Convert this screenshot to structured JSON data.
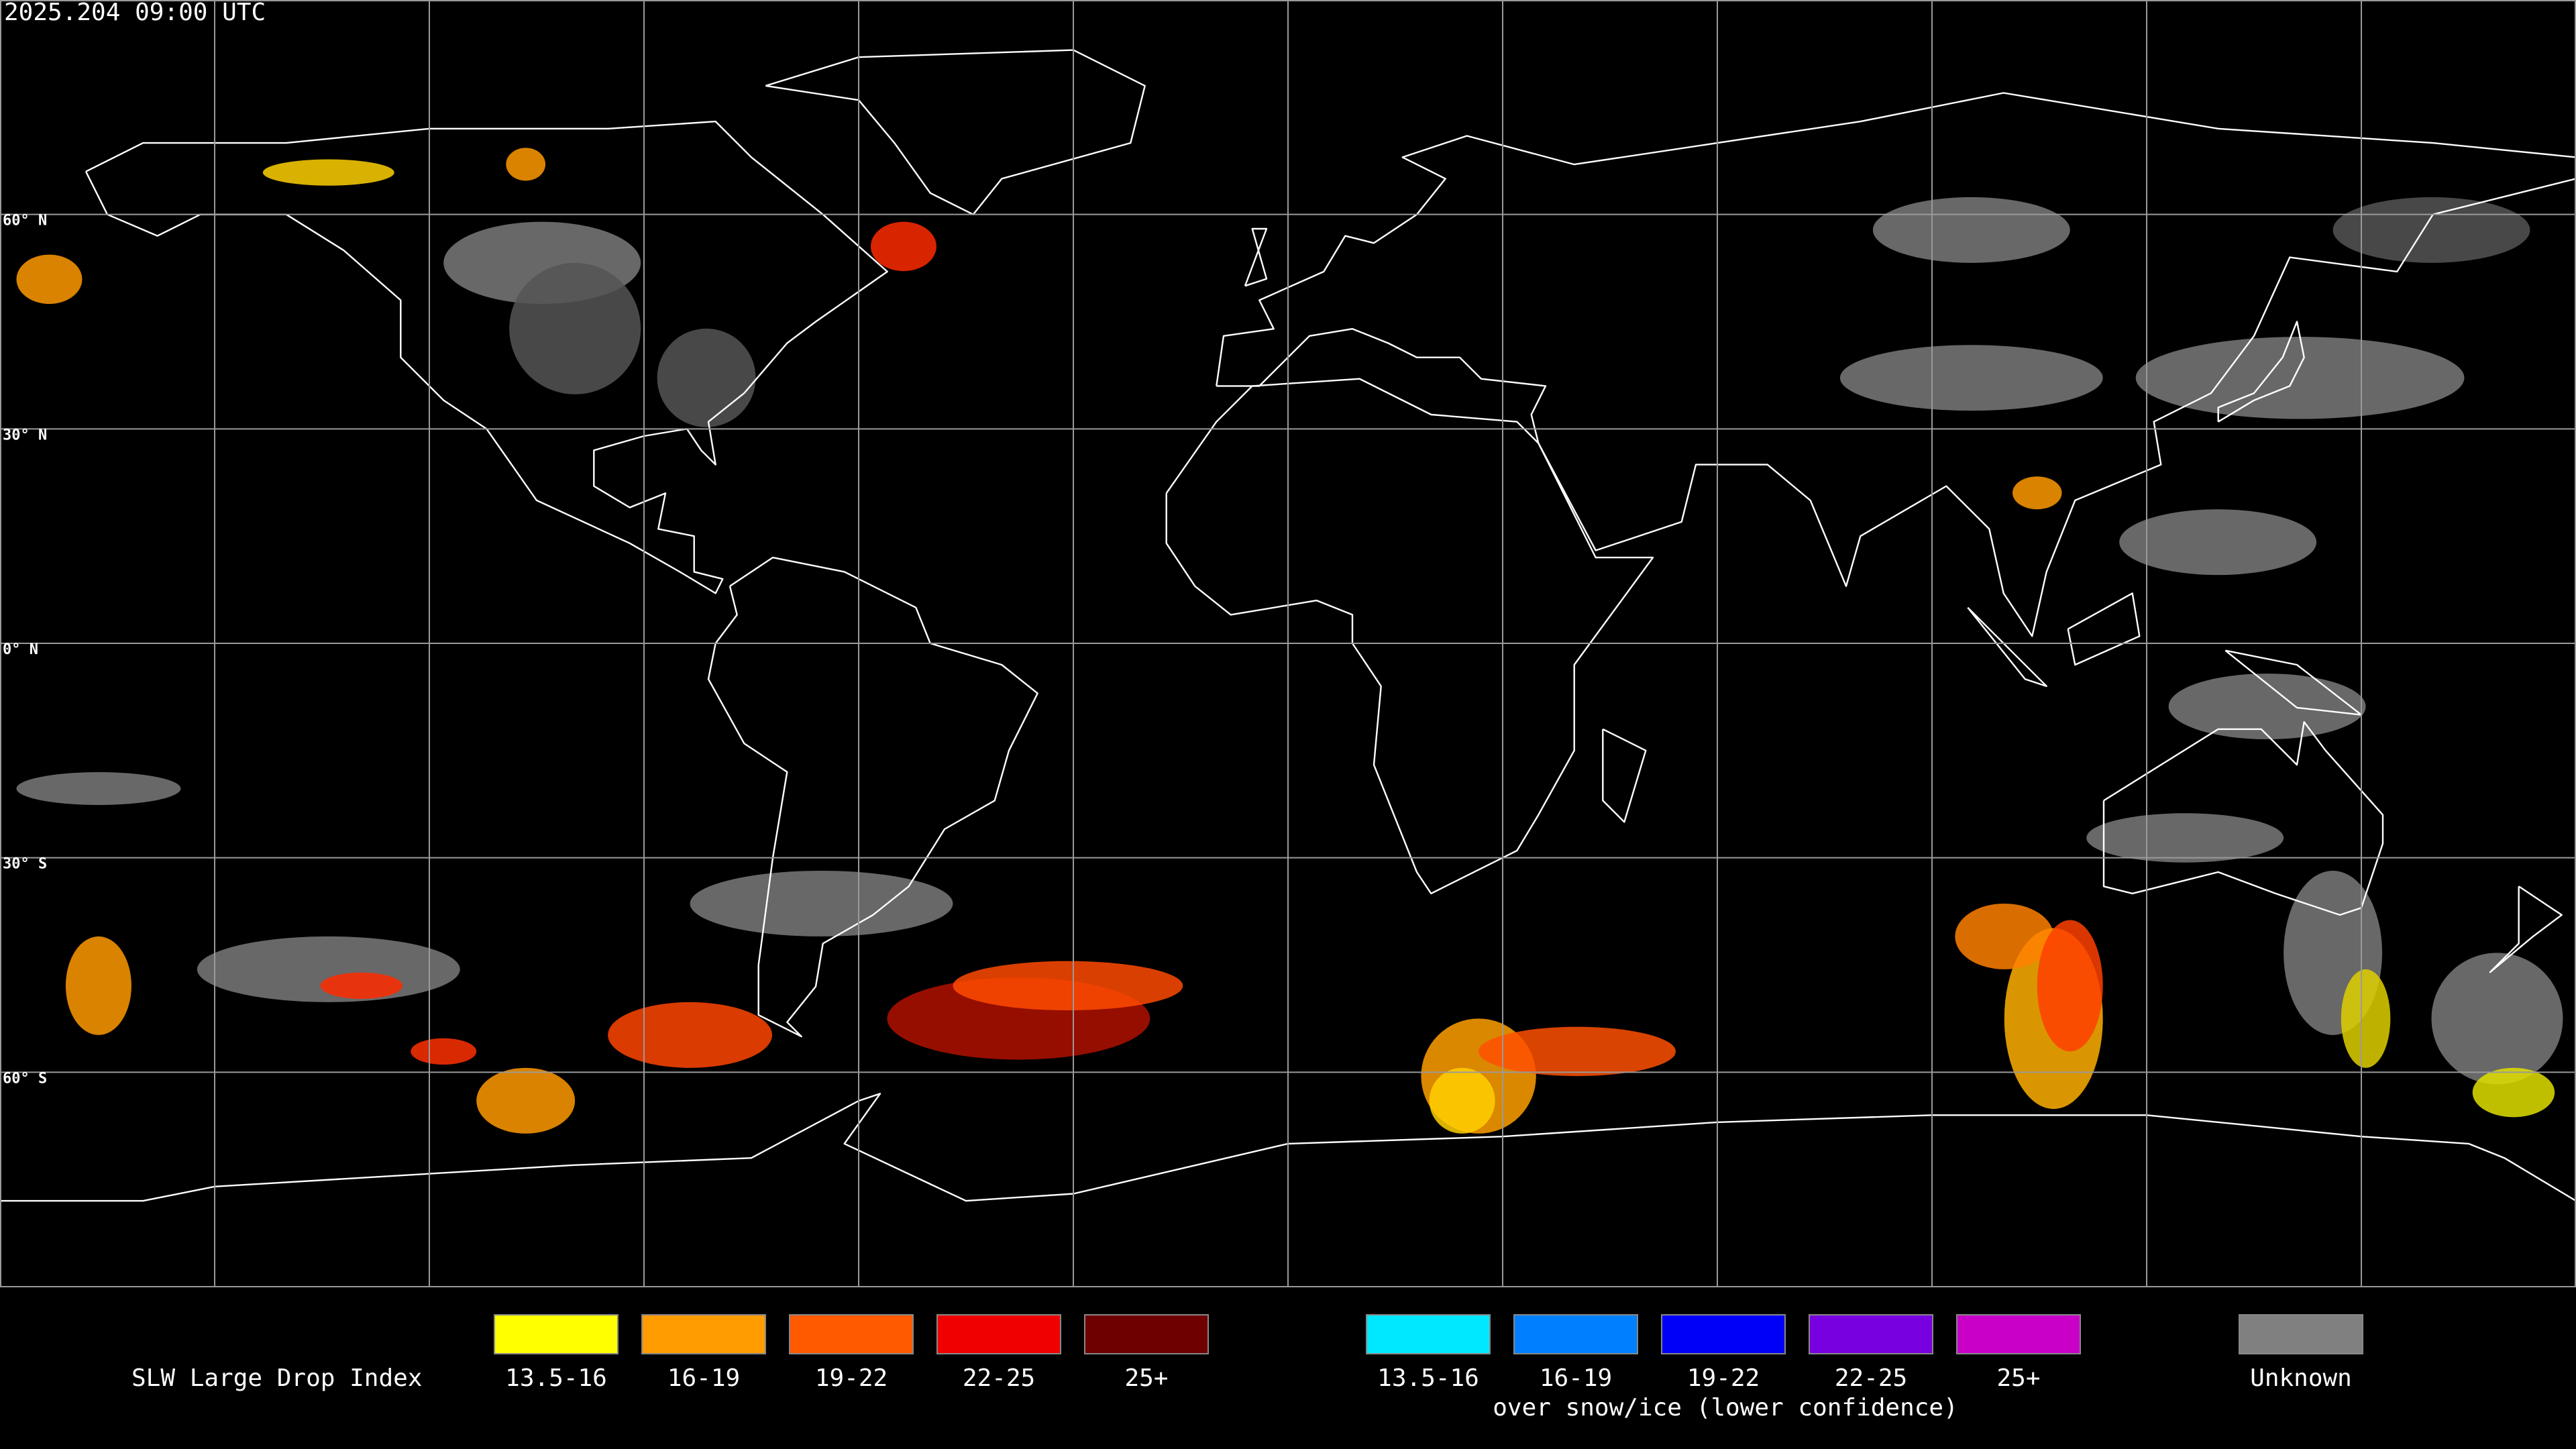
{
  "header": {
    "timestamp": "2025.204 09:00 UTC"
  },
  "map": {
    "latitude_labels": [
      "60° N",
      "30° N",
      "0° N",
      "30° S",
      "60° S"
    ]
  },
  "legend": {
    "title": "SLW Large Drop Index",
    "items": [
      {
        "label": "13.5-16",
        "color": "#ffff00"
      },
      {
        "label": "16-19",
        "color": "#ff9c00"
      },
      {
        "label": "19-22",
        "color": "#ff5a00"
      },
      {
        "label": "22-25",
        "color": "#f00000"
      },
      {
        "label": "25+",
        "color": "#6e0000"
      }
    ],
    "snow_items": [
      {
        "label": "13.5-16",
        "color": "#00e8ff"
      },
      {
        "label": "16-19",
        "color": "#0080ff"
      },
      {
        "label": "19-22",
        "color": "#0000f8"
      },
      {
        "label": "22-25",
        "color": "#7800e0"
      },
      {
        "label": "25+",
        "color": "#c800c8"
      }
    ],
    "snow_caption": "over snow/ice (lower confidence)",
    "unknown": {
      "label": "Unknown",
      "color": "#808080"
    }
  }
}
